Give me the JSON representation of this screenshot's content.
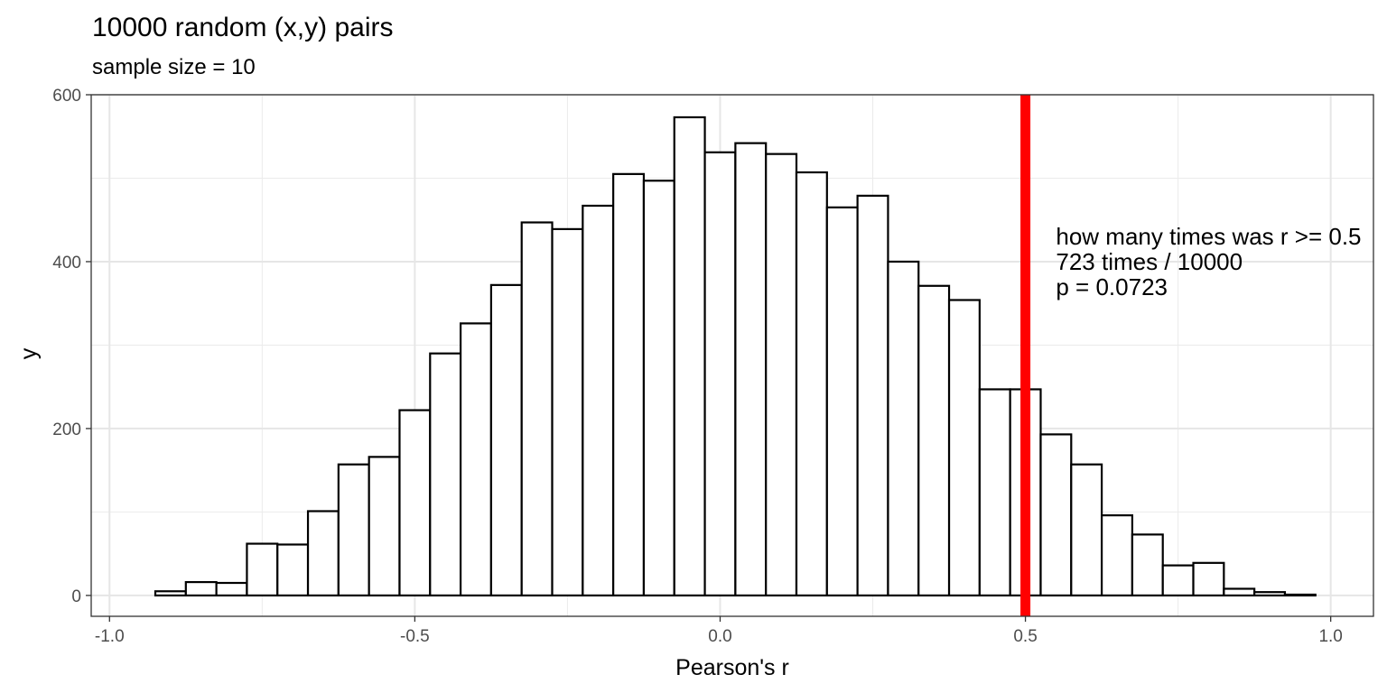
{
  "chart_data": {
    "type": "bar",
    "title": "10000 random (x,y) pairs",
    "subtitle": "sample size = 10",
    "xlabel": "Pearson's r",
    "ylabel": "y",
    "xlim": [
      -1.03,
      1.07
    ],
    "ylim": [
      -25,
      600
    ],
    "x_ticks": [
      -1.0,
      -0.5,
      0.0,
      0.5,
      1.0
    ],
    "x_tick_labels": [
      "-1.0",
      "-0.5",
      "0.0",
      "0.5",
      "1.0"
    ],
    "y_ticks": [
      0,
      200,
      400,
      600
    ],
    "y_tick_labels": [
      "0",
      "200",
      "400",
      "600"
    ],
    "grid": true,
    "bin_width": 0.05,
    "bin_centers": [
      -0.9,
      -0.85,
      -0.8,
      -0.75,
      -0.7,
      -0.65,
      -0.6,
      -0.55,
      -0.5,
      -0.45,
      -0.4,
      -0.35,
      -0.3,
      -0.25,
      -0.2,
      -0.15,
      -0.1,
      -0.05,
      0.0,
      0.05,
      0.1,
      0.15,
      0.2,
      0.25,
      0.3,
      0.35,
      0.4,
      0.45,
      0.5,
      0.55,
      0.6,
      0.65,
      0.7,
      0.75,
      0.8,
      0.85,
      0.9,
      0.95
    ],
    "values": [
      5,
      16,
      15,
      62,
      61,
      101,
      157,
      166,
      222,
      290,
      326,
      372,
      447,
      439,
      467,
      505,
      497,
      573,
      531,
      542,
      529,
      507,
      465,
      479,
      400,
      371,
      354,
      247,
      247,
      193,
      157,
      96,
      73,
      36,
      39,
      8,
      4,
      1
    ],
    "bar_fill": "#ffffff",
    "bar_stroke": "#000000",
    "vline": {
      "x": 0.5,
      "color": "#ff0000"
    },
    "annotation": {
      "x": 0.55,
      "y": 400,
      "lines": [
        "how many times was r >= 0.5",
        "723 times / 10000",
        "p = 0.0723"
      ]
    }
  }
}
